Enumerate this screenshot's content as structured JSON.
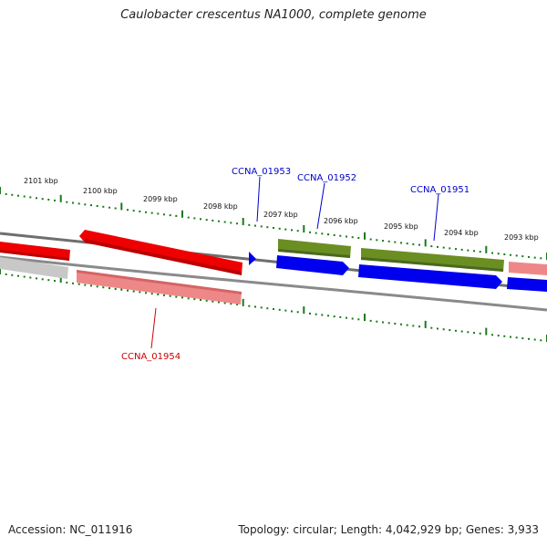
{
  "title": "Caulobacter crescentus NA1000, complete genome",
  "footer": {
    "accession": "Accession: NC_011916",
    "summary": "Topology: circular; Length: 4,042,929 bp; Genes: 3,933"
  },
  "colors": {
    "tick_green": "#1a7a1a",
    "strand_dark": "#6f6f6f",
    "red_gene": "#ee0000",
    "pink_gene": "#ee8888",
    "olive_gene": "#6b8e23",
    "blue_gene": "#0000ee",
    "gray_gene": "#c8c8c8",
    "label_blue": "#0000cc",
    "label_red": "#cc0000"
  },
  "ticks": [
    "2101 kbp",
    "2100 kbp",
    "2099 kbp",
    "2098 kbp",
    "2097 kbp",
    "2096 kbp",
    "2095 kbp",
    "2094 kbp",
    "2093 kbp"
  ],
  "gene_labels": {
    "ccna_01953": "CCNA_01953",
    "ccna_01952": "CCNA_01952",
    "ccna_01951": "CCNA_01951",
    "ccna_01954": "CCNA_01954"
  }
}
